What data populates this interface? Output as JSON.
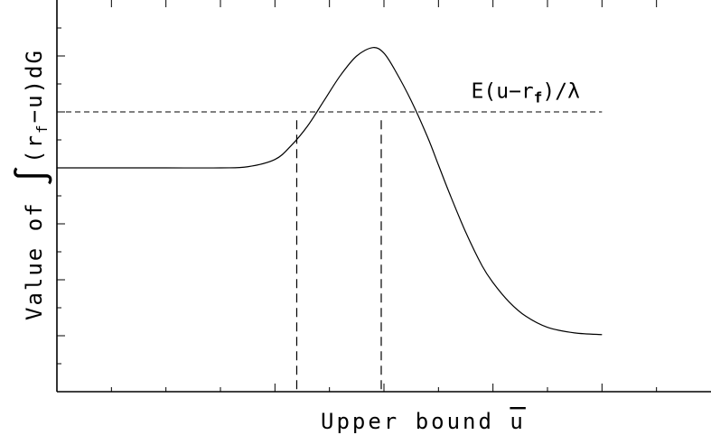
{
  "chart_data": {
    "type": "line",
    "xlabel": "Upper bound",
    "xlabel_symbol": "u",
    "ylabel": "Value of",
    "ylabel_expr_open": "(r",
    "ylabel_expr_sub": "f",
    "ylabel_expr_close": "−u)dG",
    "xlim": [
      0,
      12
    ],
    "ylim": [
      0,
      7
    ],
    "x_minor_ticks": [
      1,
      2,
      3,
      4,
      5,
      6,
      7,
      8,
      9,
      10,
      11
    ],
    "x_major_ticks": [
      4,
      6,
      8,
      10
    ],
    "y_minor_ticks": [
      0.5,
      1,
      1.5,
      2,
      2.5,
      3,
      3.5,
      4,
      4.5,
      5,
      5.5,
      6,
      6.5
    ],
    "y_major_ticks": [
      1,
      2,
      3,
      4,
      5,
      6
    ],
    "grid": false,
    "series": [
      {
        "style": "solid",
        "x": [
          0,
          1,
          2,
          3,
          3.5,
          4,
          4.3,
          4.6,
          4.9,
          5.2,
          5.5,
          5.8,
          6.0,
          6.2,
          6.5,
          6.8,
          7.0,
          7.2,
          7.5,
          7.8,
          8.0,
          8.3,
          8.6,
          9.0,
          9.5,
          10.0
        ],
        "y": [
          4.0,
          4.0,
          4.0,
          4.0,
          4.02,
          4.15,
          4.4,
          4.75,
          5.2,
          5.65,
          6.0,
          6.15,
          6.05,
          5.75,
          5.2,
          4.55,
          4.05,
          3.55,
          2.85,
          2.25,
          1.95,
          1.6,
          1.35,
          1.15,
          1.05,
          1.02
        ]
      },
      {
        "style": "dashed",
        "x": [
          0,
          10.0
        ],
        "y": [
          5.0,
          5.0
        ]
      }
    ],
    "vlines": [
      {
        "x": 4.4,
        "y_top": 4.85
      },
      {
        "x": 5.95,
        "y_top": 4.85
      }
    ],
    "annotation": {
      "text_prefix": "E(u−r",
      "text_sub": "f",
      "text_suffix": ")∕λ",
      "x": 7.6,
      "y": 5.25
    }
  }
}
